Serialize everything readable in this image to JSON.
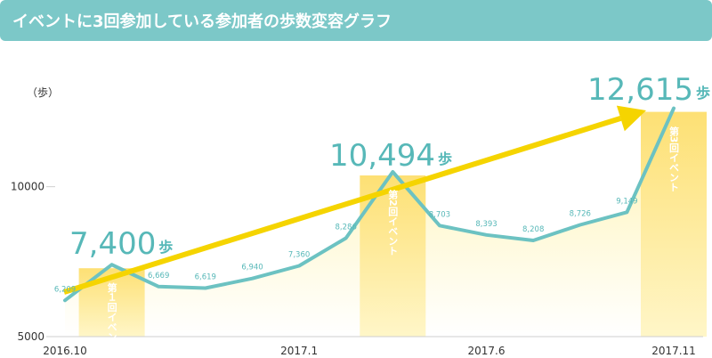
{
  "title": "イベントに3回参加している参加者の歩数変容グラフ",
  "chart_data": {
    "type": "line",
    "ylabel": "（歩）",
    "ylim": [
      5000,
      12900
    ],
    "y_ticks": [
      5000,
      10000
    ],
    "x_tick_labels": [
      {
        "index": 0,
        "label": "2016.10"
      },
      {
        "index": 5,
        "label": "2017.1"
      },
      {
        "index": 9,
        "label": "2017.6"
      },
      {
        "index": 13,
        "label": "2017.11"
      }
    ],
    "values": [
      6209,
      7400,
      6669,
      6619,
      6940,
      7360,
      8286,
      10494,
      8703,
      8393,
      8208,
      8726,
      9149,
      12615
    ],
    "data_labels": [
      "6,209",
      "",
      "6,669",
      "6,619",
      "6,940",
      "7,360",
      "8,286",
      "",
      "8,703",
      "8,393",
      "8,208",
      "8,726",
      "9,149",
      ""
    ],
    "highlights": [
      {
        "index": 1,
        "number": "7,400",
        "unit": "歩"
      },
      {
        "index": 7,
        "number": "10,494",
        "unit": "歩"
      },
      {
        "index": 13,
        "number": "12,615",
        "unit": "歩"
      }
    ],
    "events": [
      {
        "index": 1,
        "label": "第１回イベント"
      },
      {
        "index": 7,
        "label": "第2回イベント"
      },
      {
        "index": 13,
        "label": "第3回イベント"
      }
    ],
    "colors": {
      "line": "#6cc2c2",
      "area_top": "#fff2a8",
      "event_bar": "#fde074",
      "arrow": "#f5d400",
      "banner": "#7cc8c8"
    }
  }
}
